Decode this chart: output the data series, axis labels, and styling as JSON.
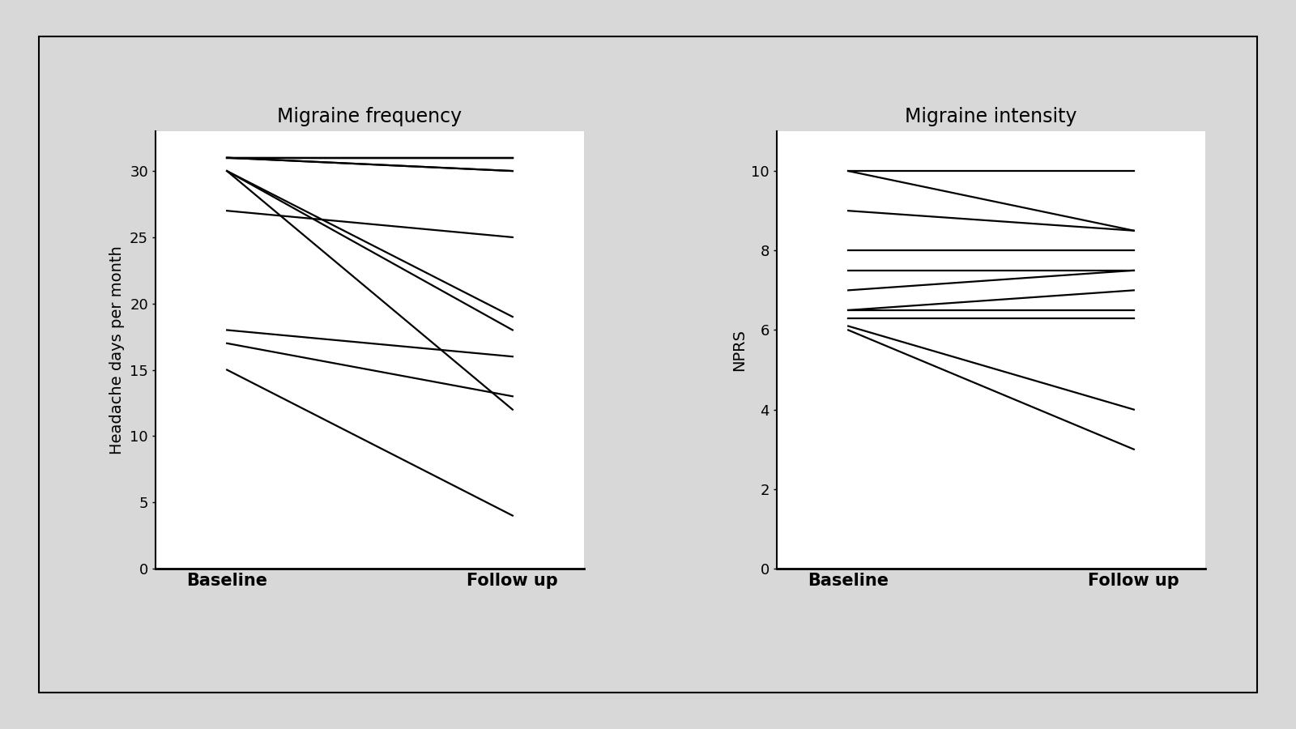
{
  "freq_baseline": [
    31,
    31,
    31,
    31,
    31,
    30,
    30,
    30,
    27,
    18,
    17,
    15
  ],
  "freq_followup": [
    31,
    31,
    31,
    30,
    30,
    19,
    18,
    12,
    25,
    16,
    13,
    4
  ],
  "int_baseline": [
    10,
    10,
    9,
    8,
    7.5,
    7,
    6.5,
    6.5,
    6.3,
    6.1,
    6
  ],
  "int_followup": [
    10,
    8.5,
    8.5,
    8,
    7.5,
    7.5,
    7,
    6.5,
    6.3,
    4,
    3
  ],
  "freq_title": "Migraine frequency",
  "int_title": "Migraine intensity",
  "freq_ylabel": "Headache days per month",
  "int_ylabel": "NPRS",
  "xlabel_baseline": "Baseline",
  "xlabel_followup": "Follow up",
  "freq_ylim": [
    0,
    33
  ],
  "freq_yticks": [
    0,
    5,
    10,
    15,
    20,
    25,
    30
  ],
  "int_ylim": [
    0,
    11
  ],
  "int_yticks": [
    0,
    2,
    4,
    6,
    8,
    10
  ],
  "line_color": "#000000",
  "bg_color": "#ffffff",
  "outer_bg": "#d8d8d8",
  "title_fontsize": 17,
  "ylabel_fontsize": 14,
  "tick_fontsize": 13,
  "xlabel_fontsize": 15,
  "line_width": 1.6
}
